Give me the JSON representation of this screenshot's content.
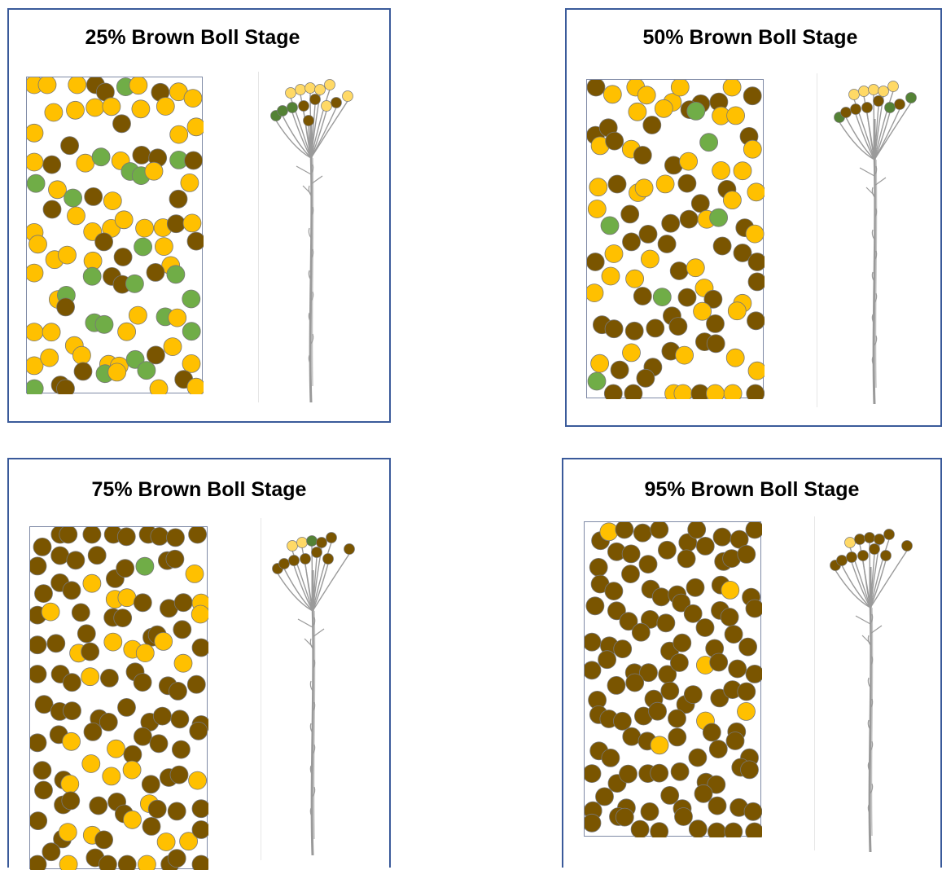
{
  "colors": {
    "brown": "#7a5500",
    "yellow": "#ffc000",
    "green": "#70ad47",
    "pale_yellow": "#ffd966",
    "dark_green": "#548235",
    "stroke": "#777777",
    "stem": "#9a9a9a",
    "frame": "#3a5a9a"
  },
  "icons": {
    "boll": "circle",
    "plant": "plant-stem-icon"
  },
  "panels": [
    {
      "title": "25% Brown Boll Stage",
      "brown_fraction": 0.25,
      "field_bolls": 100,
      "plant_bolls": {
        "brown": 4,
        "pale_yellow": 7,
        "green": 3
      }
    },
    {
      "title": "50% Brown Boll Stage",
      "brown_fraction": 0.5,
      "field_bolls": 100,
      "plant_bolls": {
        "brown": 5,
        "pale_yellow": 5,
        "green": 3
      }
    },
    {
      "title": "75% Brown Boll Stage",
      "brown_fraction": 0.75,
      "field_bolls": 120,
      "plant_bolls": {
        "brown": 9,
        "pale_yellow": 2,
        "green": 1
      }
    },
    {
      "title": "95% Brown Boll Stage",
      "brown_fraction": 0.95,
      "field_bolls": 120,
      "plant_bolls": {
        "brown": 11,
        "pale_yellow": 1,
        "green": 0
      }
    }
  ]
}
